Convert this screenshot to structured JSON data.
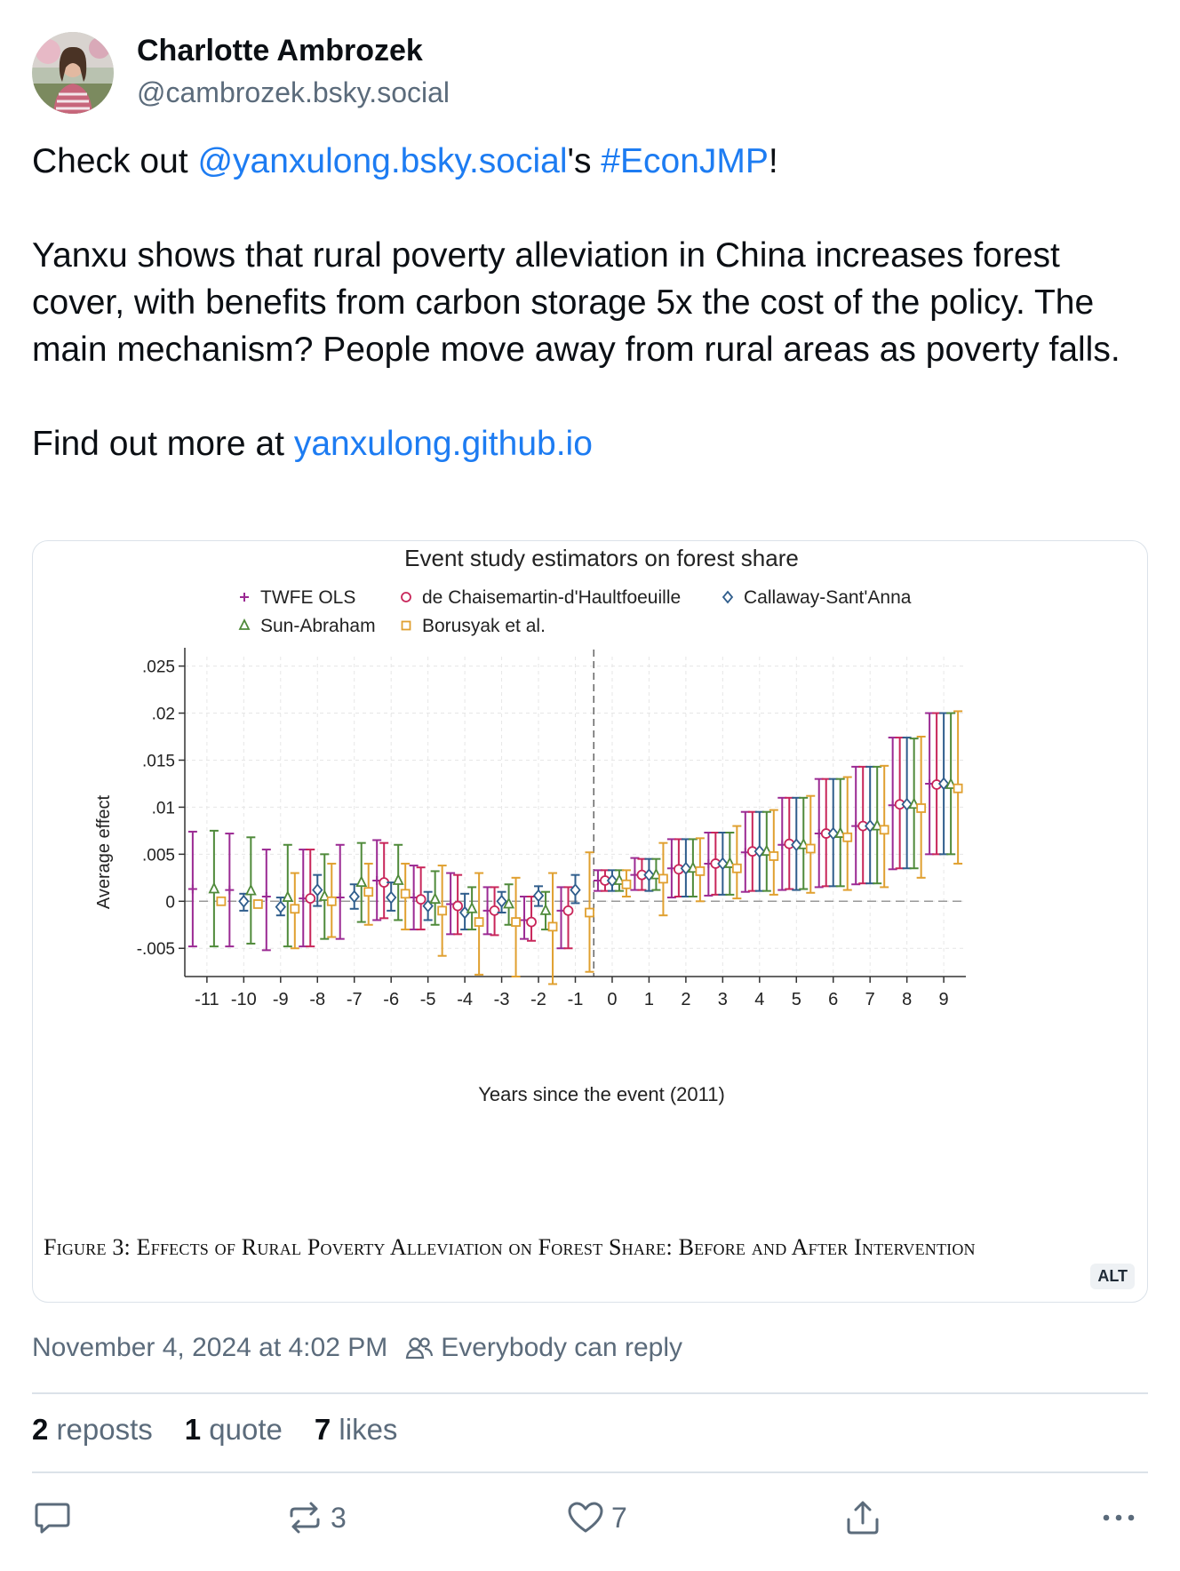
{
  "post": {
    "display_name": "Charlotte Ambrozek",
    "handle": "@cambrozek.bsky.social",
    "text": {
      "line1_prefix": "Check out ",
      "mention": "@yanxulong.bsky.social",
      "line1_middle": "'s ",
      "hashtag": "#EconJMP",
      "line1_suffix": "!",
      "paragraph2": "Yanxu shows that rural poverty alleviation in China increases forest cover, with benefits from carbon storage 5x the cost of the policy. The main mechanism? People move away from rural areas as poverty falls.",
      "line3_prefix": "Find out more at ",
      "link": "yanxulong.github.io"
    },
    "timestamp": "November 4, 2024 at 4:02 PM",
    "reply_setting": "Everybody can reply",
    "stats": {
      "reposts_count": "2",
      "reposts_label": "reposts",
      "quotes_count": "1",
      "quotes_label": "quote",
      "likes_count": "7",
      "likes_label": "likes"
    },
    "actions": {
      "repost_count": "3",
      "like_count": "7"
    },
    "alt_badge": "ALT",
    "figure_caption": "Figure 3: Effects of Rural Poverty Alleviation on Forest Share: Before and After Intervention"
  },
  "colors": {
    "link": "#1d7cf2",
    "series": [
      "#9b2a93",
      "#c8265a",
      "#2f5d8c",
      "#4f8a3a",
      "#e0a030"
    ]
  },
  "chart_data": {
    "type": "scatter",
    "title": "Event study estimators on forest share",
    "xlabel": "Years since the event (2011)",
    "ylabel": "Average effect",
    "ylim": [
      -0.008,
      0.026
    ],
    "xlim": [
      -11.6,
      9.6
    ],
    "yticks": [
      -0.005,
      0,
      0.005,
      0.01,
      0.015,
      0.02,
      0.025
    ],
    "ytick_labels": [
      "-.005",
      "0",
      ".005",
      ".01",
      ".015",
      ".02",
      ".025"
    ],
    "x": [
      -11,
      -10,
      -9,
      -8,
      -7,
      -6,
      -5,
      -4,
      -3,
      -2,
      -1,
      0,
      1,
      2,
      3,
      4,
      5,
      6,
      7,
      8,
      9
    ],
    "event_line_x": -0.5,
    "grid": true,
    "legend_position": "top",
    "series": [
      {
        "name": "TWFE OLS",
        "marker": "+",
        "values": [
          0.0013,
          0.0012,
          0.0005,
          0.0003,
          0.0004,
          0.0022,
          0.0004,
          -0.0003,
          -0.001,
          -0.002,
          -0.001,
          0.0022,
          0.0028,
          0.0035,
          0.004,
          0.0052,
          0.006,
          0.0072,
          0.008,
          0.0102,
          0.0125
        ],
        "lower": [
          -0.0048,
          -0.0048,
          -0.0052,
          -0.0048,
          -0.004,
          -0.002,
          -0.003,
          -0.0035,
          -0.0035,
          -0.004,
          -0.005,
          0.0011,
          0.0012,
          0.0004,
          0.0006,
          0.001,
          0.0012,
          0.0015,
          0.0018,
          0.0034,
          0.005
        ],
        "upper": [
          0.0074,
          0.0072,
          0.0055,
          0.0055,
          0.006,
          0.0065,
          0.0038,
          0.003,
          0.0015,
          0.0005,
          0.0015,
          0.0033,
          0.0046,
          0.0066,
          0.0073,
          0.0095,
          0.011,
          0.013,
          0.0143,
          0.0174,
          0.02
        ]
      },
      {
        "name": "de Chaisemartin-d'Haultfoeuille",
        "marker": "o",
        "values": [
          null,
          null,
          null,
          0.0003,
          null,
          0.002,
          0.0002,
          -0.0005,
          -0.001,
          -0.0022,
          -0.001,
          0.0022,
          0.0028,
          0.0034,
          0.004,
          0.0053,
          0.0061,
          0.0072,
          0.008,
          0.0103,
          0.0124
        ],
        "lower": [
          null,
          null,
          null,
          -0.0048,
          null,
          -0.0018,
          -0.003,
          -0.0035,
          -0.0036,
          -0.0042,
          -0.005,
          0.0011,
          0.0012,
          0.0005,
          0.0007,
          0.0011,
          0.0013,
          0.0016,
          0.0019,
          0.0035,
          0.005
        ],
        "upper": [
          null,
          null,
          null,
          0.0055,
          null,
          0.0062,
          0.0036,
          0.0028,
          0.0015,
          0.0005,
          0.0015,
          0.0033,
          0.0045,
          0.0066,
          0.0073,
          0.0095,
          0.011,
          0.013,
          0.0143,
          0.0174,
          0.02
        ]
      },
      {
        "name": "Callaway-Sant'Anna",
        "marker": "diamond",
        "values": [
          null,
          0.0,
          -0.0006,
          0.0012,
          0.0005,
          0.0004,
          -0.0005,
          -0.0012,
          0.0,
          0.0006,
          0.0012,
          0.0022,
          0.0028,
          0.0035,
          0.004,
          0.0053,
          0.006,
          0.0072,
          0.008,
          0.0103,
          0.0125
        ],
        "lower": [
          null,
          -0.001,
          -0.0015,
          -0.0005,
          -0.0008,
          -0.001,
          -0.002,
          -0.003,
          -0.0012,
          -0.0005,
          -0.0002,
          0.0011,
          0.0011,
          0.0005,
          0.0007,
          0.0011,
          0.0012,
          0.0016,
          0.0019,
          0.0035,
          0.005
        ],
        "upper": [
          null,
          0.0008,
          0.0004,
          0.0028,
          0.0018,
          0.002,
          0.001,
          0.0008,
          0.001,
          0.0016,
          0.0028,
          0.0033,
          0.0045,
          0.0066,
          0.0073,
          0.0095,
          0.011,
          0.013,
          0.0143,
          0.0174,
          0.02
        ]
      },
      {
        "name": "Sun-Abraham",
        "marker": "triangle",
        "values": [
          0.0013,
          0.0011,
          0.0004,
          0.0005,
          0.002,
          0.0022,
          0.0002,
          -0.0008,
          -0.0003,
          -0.001,
          null,
          0.0022,
          0.0028,
          0.0035,
          0.004,
          0.0053,
          0.006,
          0.0072,
          0.008,
          0.0103,
          0.0124
        ],
        "lower": [
          -0.0048,
          -0.0045,
          -0.0048,
          -0.004,
          -0.0022,
          -0.002,
          -0.0025,
          -0.003,
          -0.0025,
          -0.003,
          null,
          0.0011,
          0.0012,
          0.0005,
          0.0007,
          0.0011,
          0.0013,
          0.0016,
          0.0019,
          0.0035,
          0.005
        ],
        "upper": [
          0.0075,
          0.0068,
          0.006,
          0.005,
          0.0062,
          0.006,
          0.0032,
          0.0015,
          0.0018,
          0.001,
          null,
          0.0033,
          0.0045,
          0.0066,
          0.0073,
          0.0095,
          0.011,
          0.013,
          0.0143,
          0.0173,
          0.02
        ]
      },
      {
        "name": "Borusyak et al.",
        "marker": "square",
        "values": [
          0.0,
          -0.0003,
          -0.0008,
          0.0,
          0.001,
          0.0008,
          -0.001,
          -0.0022,
          -0.0022,
          -0.0027,
          -0.0012,
          0.0018,
          0.0024,
          0.0032,
          0.0035,
          0.0048,
          0.0056,
          0.0068,
          0.0076,
          0.0099,
          0.012
        ],
        "lower": [
          null,
          null,
          -0.005,
          -0.0038,
          -0.0025,
          -0.003,
          -0.0058,
          -0.0078,
          -0.008,
          -0.0088,
          -0.0075,
          0.0005,
          -0.0015,
          0.0,
          0.0003,
          0.0007,
          0.0009,
          0.0012,
          0.0015,
          0.0025,
          0.004
        ],
        "upper": [
          null,
          null,
          0.003,
          0.004,
          0.004,
          0.004,
          0.0038,
          0.003,
          0.0025,
          0.003,
          0.0052,
          0.0033,
          0.0062,
          0.0067,
          0.008,
          0.0097,
          0.0112,
          0.0132,
          0.0144,
          0.0175,
          0.0202
        ]
      }
    ]
  }
}
